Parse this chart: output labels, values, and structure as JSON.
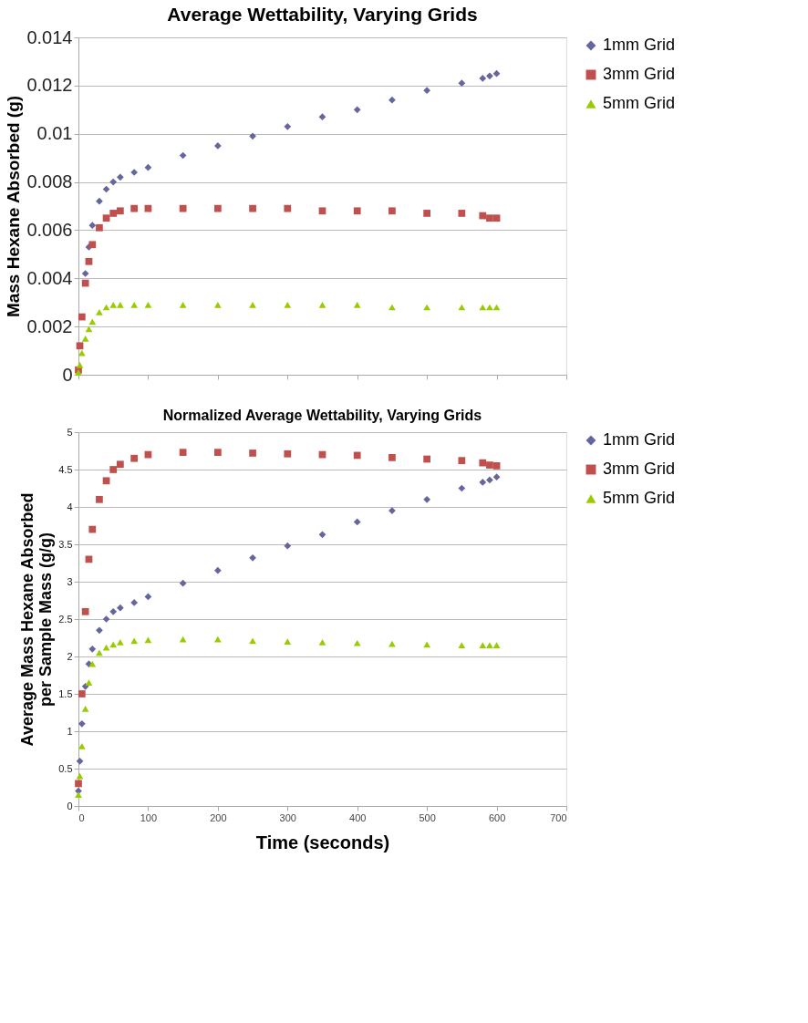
{
  "chart_data": [
    {
      "type": "scatter",
      "title": "Average Wettability, Varying Grids",
      "ylabel": "Mass Hexane Absorbed (g)",
      "xlim": [
        0,
        700
      ],
      "xticks": [
        {
          "value": 0,
          "label": null
        },
        {
          "value": 100,
          "label": null
        },
        {
          "value": 200,
          "label": null
        },
        {
          "value": 300,
          "label": null
        },
        {
          "value": 400,
          "label": null
        },
        {
          "value": 500,
          "label": null
        },
        {
          "value": 600,
          "label": null
        },
        {
          "value": 700,
          "label": null
        }
      ],
      "ylim": [
        0,
        0.014
      ],
      "yticks": [
        0,
        0.002,
        0.004,
        0.006,
        0.008,
        0.01,
        0.012,
        0.014
      ],
      "tick_labels": "y",
      "grid": "y",
      "legend": "right",
      "x": [
        0,
        2,
        5,
        10,
        15,
        20,
        30,
        40,
        50,
        60,
        80,
        100,
        150,
        200,
        250,
        300,
        350,
        400,
        450,
        500,
        550,
        580,
        590,
        600
      ],
      "series": [
        {
          "name": "1mm Grid",
          "color": "#66669e",
          "marker": "diamond",
          "values": [
            null,
            null,
            null,
            0.0042,
            0.0053,
            0.0062,
            0.0072,
            0.0077,
            0.008,
            0.0082,
            0.0084,
            0.0086,
            0.0091,
            0.0095,
            0.0099,
            0.0103,
            0.0107,
            0.011,
            0.0114,
            0.0118,
            0.0121,
            0.0123,
            0.0124,
            0.0125
          ]
        },
        {
          "name": "3mm Grid",
          "color": "#c0504d",
          "marker": "square",
          "values": [
            0.0002,
            0.0012,
            0.0024,
            0.0038,
            0.0047,
            0.0054,
            0.0061,
            0.0065,
            0.0067,
            0.0068,
            0.0069,
            0.0069,
            0.0069,
            0.0069,
            0.0069,
            0.0069,
            0.0068,
            0.0068,
            0.0068,
            0.0067,
            0.0067,
            0.0066,
            0.0065,
            0.0065
          ]
        },
        {
          "name": "5mm Grid",
          "color": "#99cc00",
          "marker": "triangle",
          "values": [
            0.0001,
            0.0004,
            0.0009,
            0.0015,
            0.0019,
            0.0022,
            0.0026,
            0.0028,
            0.0029,
            0.0029,
            0.0029,
            0.0029,
            0.0029,
            0.0029,
            0.0029,
            0.0029,
            0.0029,
            0.0029,
            0.0028,
            0.0028,
            0.0028,
            0.0028,
            0.0028,
            0.0028
          ]
        }
      ]
    },
    {
      "type": "scatter",
      "title": "Normalized Average Wettability, Varying Grids",
      "xlabel": "Time (seconds)",
      "ylabel": "Average Mass Hexane Absorbed per Sample Mass (g/g)",
      "xlim": [
        0,
        700
      ],
      "xticks": [
        0,
        100,
        200,
        300,
        400,
        500,
        600,
        700
      ],
      "ylim": [
        0,
        5
      ],
      "yticks": [
        0,
        0.5,
        1,
        1.5,
        2,
        2.5,
        3,
        3.5,
        4,
        4.5,
        5
      ],
      "grid": "y",
      "legend": "right",
      "x": [
        0,
        2,
        5,
        10,
        15,
        20,
        30,
        40,
        50,
        60,
        80,
        100,
        150,
        200,
        250,
        300,
        350,
        400,
        450,
        500,
        550,
        580,
        590,
        600
      ],
      "series": [
        {
          "name": "1mm Grid",
          "color": "#66669e",
          "marker": "diamond",
          "values": [
            0.2,
            0.6,
            1.1,
            1.6,
            1.9,
            2.1,
            2.35,
            2.5,
            2.6,
            2.65,
            2.72,
            2.8,
            2.98,
            3.15,
            3.32,
            3.48,
            3.63,
            3.8,
            3.95,
            4.1,
            4.25,
            4.33,
            4.36,
            4.4
          ]
        },
        {
          "name": "3mm Grid",
          "color": "#c0504d",
          "marker": "square",
          "values": [
            0.3,
            null,
            1.5,
            2.6,
            3.3,
            3.7,
            4.1,
            4.35,
            4.5,
            4.57,
            4.65,
            4.7,
            4.73,
            4.73,
            4.72,
            4.71,
            4.7,
            4.69,
            4.66,
            4.64,
            4.62,
            4.59,
            4.56,
            4.55
          ]
        },
        {
          "name": "5mm Grid",
          "color": "#99cc00",
          "marker": "triangle",
          "values": [
            0.15,
            0.4,
            0.8,
            1.3,
            1.65,
            1.9,
            2.05,
            2.12,
            2.16,
            2.19,
            2.21,
            2.22,
            2.23,
            2.23,
            2.21,
            2.2,
            2.19,
            2.18,
            2.17,
            2.16,
            2.15,
            2.15,
            2.15,
            2.15
          ]
        }
      ]
    }
  ]
}
